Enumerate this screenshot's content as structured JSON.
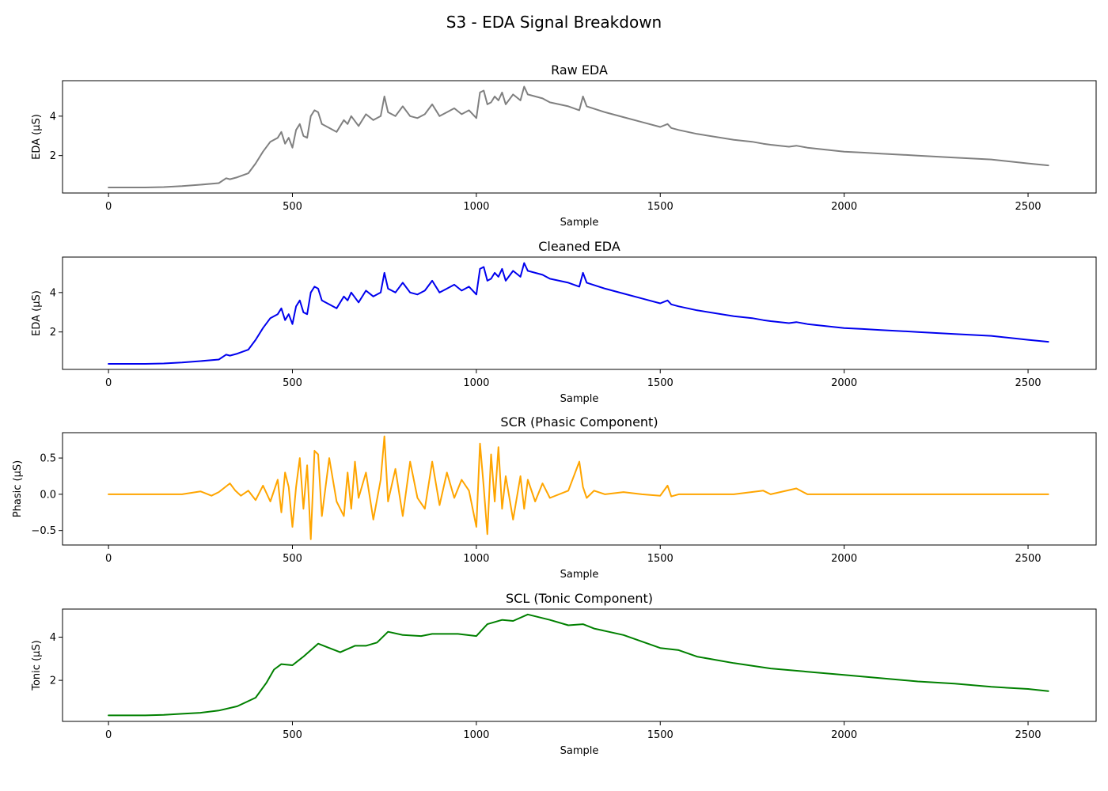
{
  "figure": {
    "title": "S3 - EDA Signal Breakdown"
  },
  "chart_data": [
    {
      "type": "line",
      "title": "Raw EDA",
      "xlabel": "Sample",
      "ylabel": "EDA (µS)",
      "xlim": [
        -125,
        2685
      ],
      "ylim": [
        0.1,
        5.8
      ],
      "xticks": [
        0,
        500,
        1000,
        1500,
        2000,
        2500
      ],
      "yticks": [
        2,
        4
      ],
      "color": "#808080",
      "series": [
        {
          "name": "",
          "x": [
            0,
            100,
            150,
            200,
            250,
            300,
            320,
            330,
            350,
            380,
            400,
            420,
            440,
            460,
            470,
            480,
            490,
            500,
            510,
            520,
            530,
            540,
            550,
            560,
            570,
            580,
            600,
            620,
            640,
            650,
            660,
            680,
            700,
            720,
            740,
            750,
            760,
            780,
            800,
            820,
            840,
            860,
            880,
            900,
            920,
            940,
            960,
            980,
            1000,
            1010,
            1020,
            1030,
            1040,
            1050,
            1060,
            1070,
            1080,
            1100,
            1120,
            1130,
            1140,
            1160,
            1180,
            1200,
            1250,
            1280,
            1290,
            1300,
            1350,
            1400,
            1450,
            1500,
            1520,
            1530,
            1550,
            1600,
            1700,
            1750,
            1780,
            1800,
            1850,
            1870,
            1900,
            1950,
            2000,
            2050,
            2100,
            2200,
            2300,
            2400,
            2500,
            2555
          ],
          "y": [
            0.38,
            0.38,
            0.4,
            0.45,
            0.52,
            0.6,
            0.85,
            0.8,
            0.9,
            1.1,
            1.6,
            2.2,
            2.7,
            2.9,
            3.2,
            2.6,
            2.9,
            2.4,
            3.3,
            3.6,
            3.0,
            2.9,
            4.0,
            4.3,
            4.2,
            3.6,
            3.4,
            3.2,
            3.8,
            3.6,
            4.0,
            3.5,
            4.1,
            3.8,
            4.0,
            5.0,
            4.2,
            4.0,
            4.5,
            4.0,
            3.9,
            4.1,
            4.6,
            4.0,
            4.2,
            4.4,
            4.1,
            4.3,
            3.9,
            5.2,
            5.3,
            4.6,
            4.7,
            5.0,
            4.8,
            5.2,
            4.6,
            5.1,
            4.8,
            5.5,
            5.1,
            5.0,
            4.9,
            4.7,
            4.5,
            4.3,
            5.0,
            4.5,
            4.2,
            3.95,
            3.7,
            3.45,
            3.6,
            3.4,
            3.3,
            3.1,
            2.8,
            2.7,
            2.6,
            2.55,
            2.45,
            2.5,
            2.4,
            2.3,
            2.2,
            2.15,
            2.1,
            2.0,
            1.9,
            1.8,
            1.6,
            1.5
          ]
        }
      ]
    },
    {
      "type": "line",
      "title": "Cleaned EDA",
      "xlabel": "Sample",
      "ylabel": "EDA (µS)",
      "xlim": [
        -125,
        2685
      ],
      "ylim": [
        0.1,
        5.8
      ],
      "xticks": [
        0,
        500,
        1000,
        1500,
        2000,
        2500
      ],
      "yticks": [
        2,
        4
      ],
      "color": "#0000ee",
      "series": [
        {
          "name": "",
          "x": [
            0,
            100,
            150,
            200,
            250,
            300,
            320,
            330,
            350,
            380,
            400,
            420,
            440,
            460,
            470,
            480,
            490,
            500,
            510,
            520,
            530,
            540,
            550,
            560,
            570,
            580,
            600,
            620,
            640,
            650,
            660,
            680,
            700,
            720,
            740,
            750,
            760,
            780,
            800,
            820,
            840,
            860,
            880,
            900,
            920,
            940,
            960,
            980,
            1000,
            1010,
            1020,
            1030,
            1040,
            1050,
            1060,
            1070,
            1080,
            1100,
            1120,
            1130,
            1140,
            1160,
            1180,
            1200,
            1250,
            1280,
            1290,
            1300,
            1350,
            1400,
            1450,
            1500,
            1520,
            1530,
            1550,
            1600,
            1700,
            1750,
            1780,
            1800,
            1850,
            1870,
            1900,
            1950,
            2000,
            2050,
            2100,
            2200,
            2300,
            2400,
            2500,
            2555
          ],
          "y": [
            0.38,
            0.38,
            0.4,
            0.45,
            0.52,
            0.6,
            0.85,
            0.8,
            0.9,
            1.1,
            1.6,
            2.2,
            2.7,
            2.9,
            3.2,
            2.6,
            2.9,
            2.4,
            3.3,
            3.6,
            3.0,
            2.9,
            4.0,
            4.3,
            4.2,
            3.6,
            3.4,
            3.2,
            3.8,
            3.6,
            4.0,
            3.5,
            4.1,
            3.8,
            4.0,
            5.0,
            4.2,
            4.0,
            4.5,
            4.0,
            3.9,
            4.1,
            4.6,
            4.0,
            4.2,
            4.4,
            4.1,
            4.3,
            3.9,
            5.2,
            5.3,
            4.6,
            4.7,
            5.0,
            4.8,
            5.2,
            4.6,
            5.1,
            4.8,
            5.5,
            5.1,
            5.0,
            4.9,
            4.7,
            4.5,
            4.3,
            5.0,
            4.5,
            4.2,
            3.95,
            3.7,
            3.45,
            3.6,
            3.4,
            3.3,
            3.1,
            2.8,
            2.7,
            2.6,
            2.55,
            2.45,
            2.5,
            2.4,
            2.3,
            2.2,
            2.15,
            2.1,
            2.0,
            1.9,
            1.8,
            1.6,
            1.5
          ]
        }
      ]
    },
    {
      "type": "line",
      "title": "SCR (Phasic Component)",
      "xlabel": "Sample",
      "ylabel": "Phasic (µS)",
      "xlim": [
        -125,
        2685
      ],
      "ylim": [
        -0.7,
        0.85
      ],
      "xticks": [
        0,
        500,
        1000,
        1500,
        2000,
        2500
      ],
      "yticks": [
        -0.5,
        0.0,
        0.5
      ],
      "color": "#ffa500",
      "series": [
        {
          "name": "",
          "x": [
            0,
            100,
            200,
            250,
            280,
            300,
            330,
            345,
            360,
            380,
            400,
            420,
            440,
            460,
            470,
            480,
            490,
            500,
            510,
            520,
            530,
            540,
            550,
            560,
            570,
            580,
            600,
            620,
            640,
            650,
            660,
            670,
            680,
            700,
            720,
            740,
            750,
            760,
            780,
            800,
            820,
            840,
            860,
            880,
            900,
            920,
            940,
            960,
            980,
            1000,
            1010,
            1020,
            1030,
            1040,
            1050,
            1060,
            1070,
            1080,
            1100,
            1120,
            1130,
            1140,
            1160,
            1180,
            1200,
            1250,
            1280,
            1290,
            1300,
            1320,
            1350,
            1400,
            1450,
            1500,
            1520,
            1530,
            1550,
            1600,
            1700,
            1780,
            1800,
            1870,
            1900,
            2000,
            2100,
            2200,
            2300,
            2400,
            2500,
            2555
          ],
          "y": [
            0,
            0,
            0,
            0.04,
            -0.02,
            0.03,
            0.15,
            0.05,
            -0.02,
            0.05,
            -0.08,
            0.12,
            -0.1,
            0.2,
            -0.25,
            0.3,
            0.1,
            -0.45,
            0.1,
            0.5,
            -0.2,
            0.4,
            -0.62,
            0.6,
            0.55,
            -0.3,
            0.5,
            -0.1,
            -0.3,
            0.3,
            -0.2,
            0.45,
            -0.05,
            0.3,
            -0.35,
            0.2,
            0.8,
            -0.1,
            0.35,
            -0.3,
            0.45,
            -0.05,
            -0.2,
            0.45,
            -0.15,
            0.3,
            -0.05,
            0.2,
            0.05,
            -0.45,
            0.7,
            0.1,
            -0.55,
            0.55,
            -0.1,
            0.65,
            -0.2,
            0.25,
            -0.35,
            0.25,
            -0.2,
            0.2,
            -0.1,
            0.15,
            -0.05,
            0.05,
            0.45,
            0.1,
            -0.05,
            0.05,
            0,
            0.03,
            0,
            -0.02,
            0.12,
            -0.03,
            0,
            0,
            0,
            0.05,
            0,
            0.08,
            0,
            0,
            0,
            0,
            0,
            0,
            0,
            0
          ]
        }
      ]
    },
    {
      "type": "line",
      "title": "SCL (Tonic Component)",
      "xlabel": "Sample",
      "ylabel": "Tonic (µS)",
      "xlim": [
        -125,
        2685
      ],
      "ylim": [
        0.1,
        5.3
      ],
      "xticks": [
        0,
        500,
        1000,
        1500,
        2000,
        2500
      ],
      "yticks": [
        2,
        4
      ],
      "color": "#008000",
      "series": [
        {
          "name": "",
          "x": [
            0,
            100,
            150,
            200,
            250,
            300,
            350,
            400,
            430,
            450,
            470,
            500,
            530,
            570,
            600,
            630,
            670,
            700,
            730,
            760,
            800,
            850,
            880,
            950,
            1000,
            1030,
            1070,
            1100,
            1140,
            1200,
            1250,
            1290,
            1320,
            1400,
            1500,
            1550,
            1600,
            1700,
            1800,
            1900,
            2000,
            2100,
            2200,
            2300,
            2400,
            2500,
            2555
          ],
          "y": [
            0.38,
            0.38,
            0.4,
            0.45,
            0.5,
            0.6,
            0.8,
            1.2,
            1.9,
            2.5,
            2.75,
            2.7,
            3.1,
            3.7,
            3.5,
            3.3,
            3.6,
            3.6,
            3.75,
            4.25,
            4.1,
            4.05,
            4.15,
            4.15,
            4.05,
            4.6,
            4.8,
            4.75,
            5.05,
            4.8,
            4.55,
            4.6,
            4.4,
            4.1,
            3.5,
            3.4,
            3.1,
            2.8,
            2.55,
            2.4,
            2.25,
            2.1,
            1.95,
            1.85,
            1.7,
            1.6,
            1.5
          ]
        }
      ]
    }
  ]
}
